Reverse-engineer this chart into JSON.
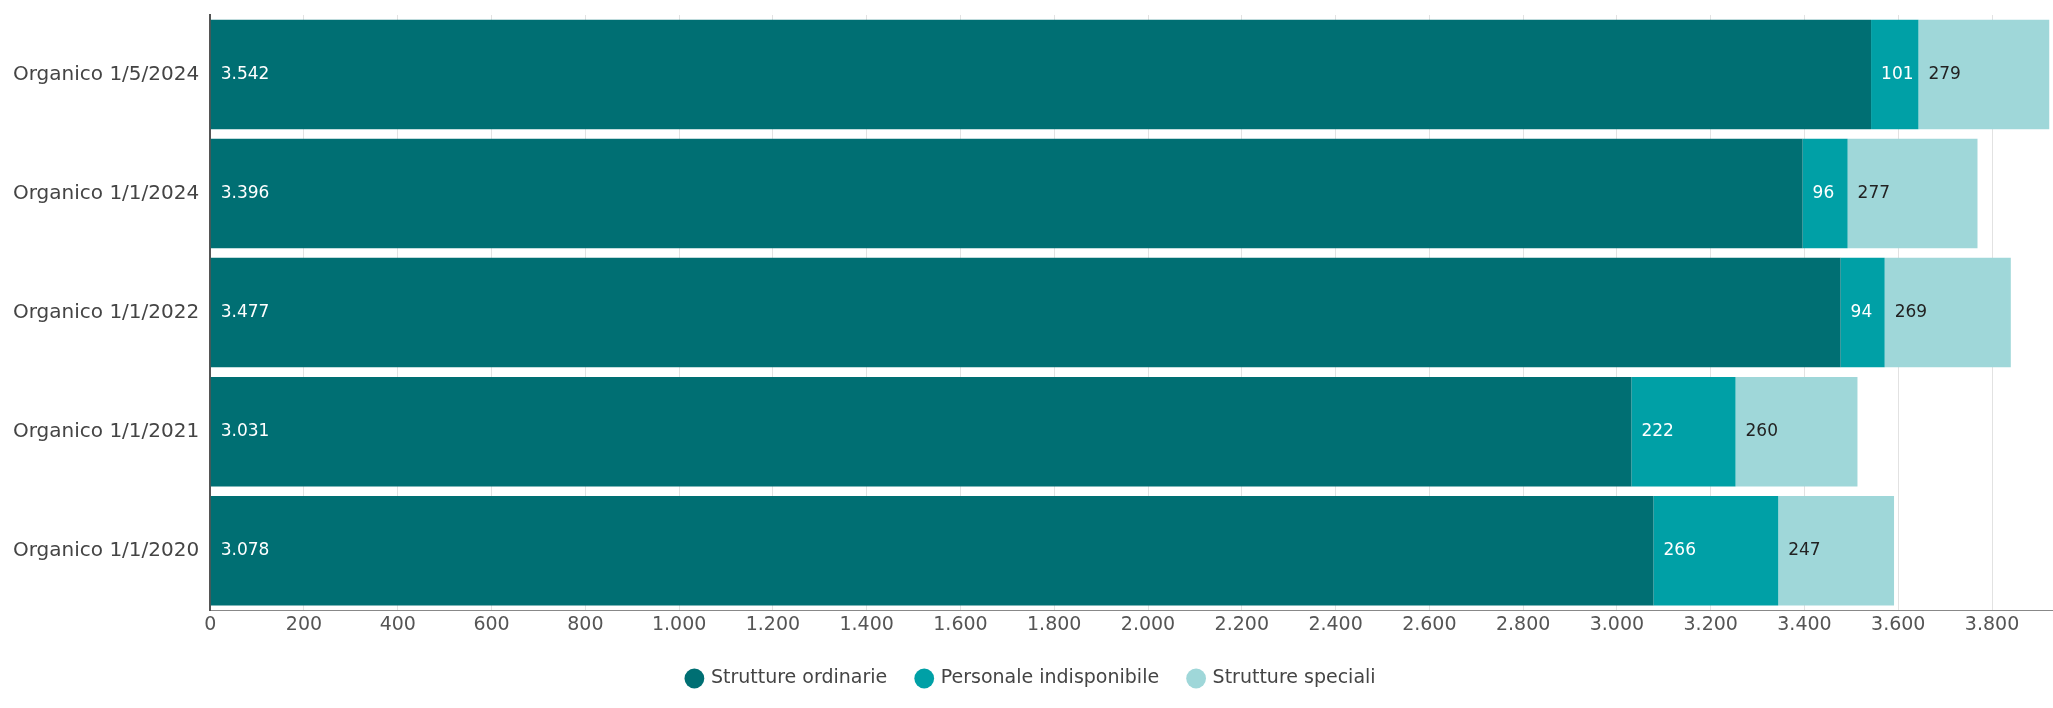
{
  "chart_data": {
    "type": "bar",
    "orientation": "horizontal",
    "stacked": true,
    "categories": [
      "Organico 1/5/2024",
      "Organico 1/1/2024",
      "Organico 1/1/2022",
      "Organico 1/1/2021",
      "Organico 1/1/2020"
    ],
    "series": [
      {
        "name": "Strutture ordinarie",
        "color": "#006f73",
        "values": [
          3542,
          3396,
          3477,
          3031,
          3078
        ],
        "value_labels": [
          "3.542",
          "3.396",
          "3.477",
          "3.031",
          "3.078"
        ]
      },
      {
        "name": "Personale indisponibile",
        "color": "#00a0a6",
        "values": [
          101,
          96,
          94,
          222,
          266
        ],
        "value_labels": [
          "101",
          "96",
          "94",
          "222",
          "266"
        ]
      },
      {
        "name": "Strutture speciali",
        "color": "#9fd7d9",
        "values": [
          279,
          277,
          269,
          260,
          247
        ],
        "value_labels": [
          "279",
          "277",
          "269",
          "260",
          "247"
        ]
      }
    ],
    "xlim": [
      0,
      3930
    ],
    "xticks": [
      0,
      200,
      400,
      600,
      800,
      {
        "value": 1000,
        "label": "1.000"
      },
      {
        "value": 1200,
        "label": "1.200"
      },
      {
        "value": 1400,
        "label": "1.400"
      },
      {
        "value": 1600,
        "label": "1.600"
      },
      {
        "value": 1800,
        "label": "1.800"
      },
      {
        "value": 2000,
        "label": "2.000"
      },
      {
        "value": 2200,
        "label": "2.200"
      },
      {
        "value": 2400,
        "label": "2.400"
      },
      {
        "value": 2600,
        "label": "2.600"
      },
      {
        "value": 2800,
        "label": "2.800"
      },
      {
        "value": 3000,
        "label": "3.000"
      },
      {
        "value": 3200,
        "label": "3.200"
      },
      {
        "value": 3400,
        "label": "3.400"
      },
      {
        "value": 3600,
        "label": "3.600"
      },
      {
        "value": 3800,
        "label": "3.800"
      }
    ],
    "grid": "x",
    "legend": "bottom"
  }
}
